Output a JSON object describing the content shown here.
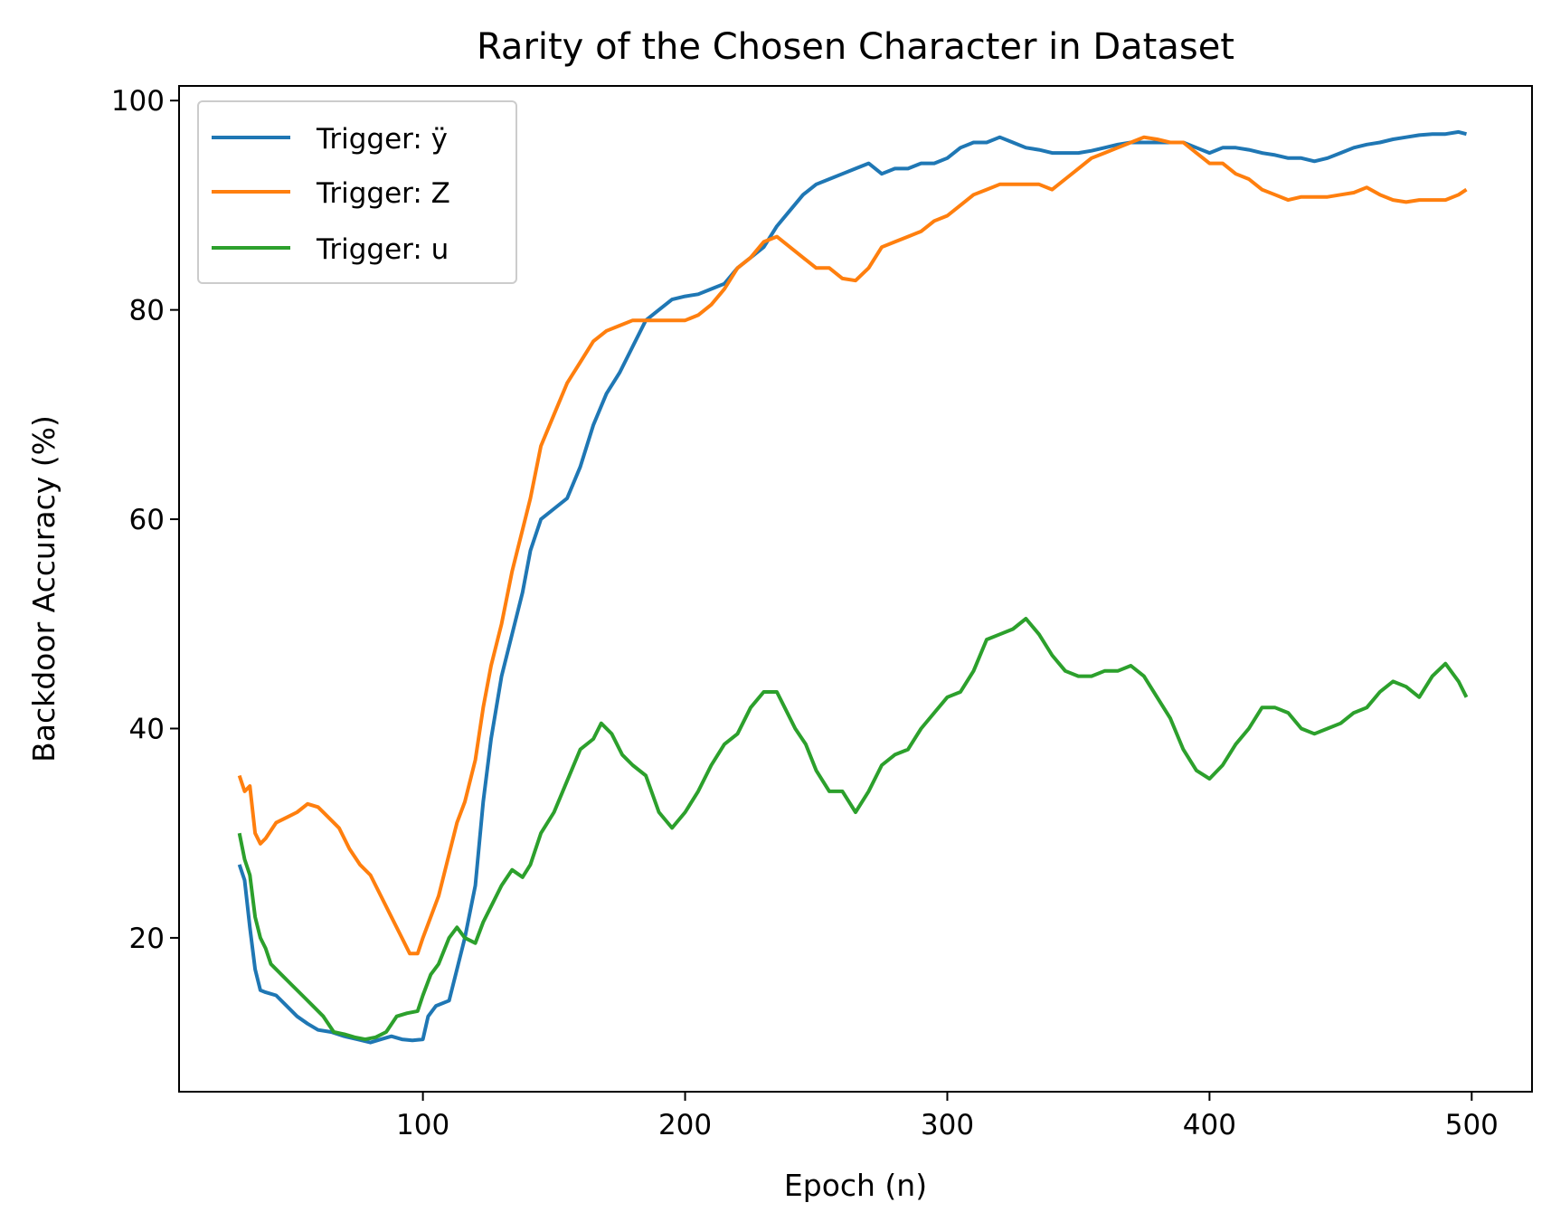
{
  "chart_data": {
    "type": "line",
    "title": "Rarity of the Chosen Character in Dataset",
    "xlabel": "Epoch (n)",
    "ylabel": "Backdoor Accuracy (%)",
    "xlim": [
      7,
      523
    ],
    "ylim": [
      5.3,
      101.4
    ],
    "xticks": [
      100,
      200,
      300,
      400,
      500
    ],
    "yticks": [
      20,
      40,
      60,
      80,
      100
    ],
    "grid": false,
    "legend_position": "top-left",
    "series": [
      {
        "name": "Trigger: ÿ",
        "color": "#1f77b4",
        "points": [
          [
            30,
            27
          ],
          [
            32,
            25.5
          ],
          [
            34,
            21
          ],
          [
            36,
            17
          ],
          [
            38,
            15
          ],
          [
            40,
            14.8
          ],
          [
            44,
            14.5
          ],
          [
            48,
            13.5
          ],
          [
            52,
            12.5
          ],
          [
            56,
            11.8
          ],
          [
            60,
            11.2
          ],
          [
            65,
            11
          ],
          [
            70,
            10.6
          ],
          [
            75,
            10.3
          ],
          [
            80,
            10
          ],
          [
            84,
            10.3
          ],
          [
            88,
            10.6
          ],
          [
            92,
            10.3
          ],
          [
            96,
            10.2
          ],
          [
            100,
            10.3
          ],
          [
            102,
            12.5
          ],
          [
            105,
            13.5
          ],
          [
            110,
            14
          ],
          [
            113,
            17
          ],
          [
            116,
            20
          ],
          [
            120,
            25
          ],
          [
            123,
            33
          ],
          [
            126,
            39
          ],
          [
            130,
            45
          ],
          [
            134,
            49
          ],
          [
            138,
            53
          ],
          [
            141,
            57
          ],
          [
            145,
            60
          ],
          [
            150,
            61
          ],
          [
            155,
            62
          ],
          [
            160,
            65
          ],
          [
            165,
            69
          ],
          [
            170,
            72
          ],
          [
            175,
            74
          ],
          [
            180,
            76.5
          ],
          [
            185,
            79
          ],
          [
            190,
            80
          ],
          [
            195,
            81
          ],
          [
            200,
            81.3
          ],
          [
            205,
            81.5
          ],
          [
            210,
            82
          ],
          [
            215,
            82.5
          ],
          [
            220,
            84
          ],
          [
            225,
            85
          ],
          [
            230,
            86
          ],
          [
            235,
            88
          ],
          [
            240,
            89.5
          ],
          [
            245,
            91
          ],
          [
            250,
            92
          ],
          [
            255,
            92.5
          ],
          [
            260,
            93
          ],
          [
            265,
            93.5
          ],
          [
            270,
            94
          ],
          [
            275,
            93
          ],
          [
            280,
            93.5
          ],
          [
            285,
            93.5
          ],
          [
            290,
            94
          ],
          [
            295,
            94
          ],
          [
            300,
            94.5
          ],
          [
            305,
            95.5
          ],
          [
            310,
            96
          ],
          [
            315,
            96
          ],
          [
            320,
            96.5
          ],
          [
            325,
            96
          ],
          [
            330,
            95.5
          ],
          [
            335,
            95.3
          ],
          [
            340,
            95
          ],
          [
            345,
            95
          ],
          [
            350,
            95
          ],
          [
            355,
            95.2
          ],
          [
            360,
            95.5
          ],
          [
            365,
            95.8
          ],
          [
            370,
            96
          ],
          [
            375,
            96
          ],
          [
            380,
            96
          ],
          [
            385,
            96
          ],
          [
            390,
            96
          ],
          [
            395,
            95.5
          ],
          [
            400,
            95
          ],
          [
            405,
            95.5
          ],
          [
            410,
            95.5
          ],
          [
            415,
            95.3
          ],
          [
            420,
            95
          ],
          [
            425,
            94.8
          ],
          [
            430,
            94.5
          ],
          [
            435,
            94.5
          ],
          [
            440,
            94.2
          ],
          [
            445,
            94.5
          ],
          [
            450,
            95
          ],
          [
            455,
            95.5
          ],
          [
            460,
            95.8
          ],
          [
            465,
            96
          ],
          [
            470,
            96.3
          ],
          [
            475,
            96.5
          ],
          [
            480,
            96.7
          ],
          [
            485,
            96.8
          ],
          [
            490,
            96.8
          ],
          [
            495,
            97
          ],
          [
            498,
            96.8
          ]
        ]
      },
      {
        "name": "Trigger: Z",
        "color": "#ff7f0e",
        "points": [
          [
            30,
            35.5
          ],
          [
            32,
            34
          ],
          [
            34,
            34.5
          ],
          [
            36,
            30
          ],
          [
            38,
            29
          ],
          [
            40,
            29.5
          ],
          [
            44,
            31
          ],
          [
            48,
            31.5
          ],
          [
            52,
            32
          ],
          [
            56,
            32.8
          ],
          [
            60,
            32.5
          ],
          [
            64,
            31.5
          ],
          [
            68,
            30.5
          ],
          [
            72,
            28.5
          ],
          [
            76,
            27
          ],
          [
            80,
            26
          ],
          [
            84,
            24
          ],
          [
            88,
            22
          ],
          [
            92,
            20
          ],
          [
            95,
            18.5
          ],
          [
            98,
            18.5
          ],
          [
            100,
            20
          ],
          [
            103,
            22
          ],
          [
            106,
            24
          ],
          [
            110,
            28
          ],
          [
            113,
            31
          ],
          [
            116,
            33
          ],
          [
            120,
            37
          ],
          [
            123,
            42
          ],
          [
            126,
            46
          ],
          [
            130,
            50
          ],
          [
            134,
            55
          ],
          [
            138,
            59
          ],
          [
            141,
            62
          ],
          [
            145,
            67
          ],
          [
            150,
            70
          ],
          [
            155,
            73
          ],
          [
            160,
            75
          ],
          [
            165,
            77
          ],
          [
            170,
            78
          ],
          [
            175,
            78.5
          ],
          [
            180,
            79
          ],
          [
            185,
            79
          ],
          [
            190,
            79
          ],
          [
            195,
            79
          ],
          [
            200,
            79
          ],
          [
            205,
            79.5
          ],
          [
            210,
            80.5
          ],
          [
            215,
            82
          ],
          [
            220,
            84
          ],
          [
            225,
            85
          ],
          [
            230,
            86.5
          ],
          [
            235,
            87
          ],
          [
            240,
            86
          ],
          [
            245,
            85
          ],
          [
            250,
            84
          ],
          [
            255,
            84
          ],
          [
            260,
            83
          ],
          [
            265,
            82.8
          ],
          [
            270,
            84
          ],
          [
            275,
            86
          ],
          [
            280,
            86.5
          ],
          [
            285,
            87
          ],
          [
            290,
            87.5
          ],
          [
            295,
            88.5
          ],
          [
            300,
            89
          ],
          [
            305,
            90
          ],
          [
            310,
            91
          ],
          [
            315,
            91.5
          ],
          [
            320,
            92
          ],
          [
            325,
            92
          ],
          [
            330,
            92
          ],
          [
            335,
            92
          ],
          [
            340,
            91.5
          ],
          [
            345,
            92.5
          ],
          [
            350,
            93.5
          ],
          [
            355,
            94.5
          ],
          [
            360,
            95
          ],
          [
            365,
            95.5
          ],
          [
            370,
            96
          ],
          [
            375,
            96.5
          ],
          [
            380,
            96.3
          ],
          [
            385,
            96
          ],
          [
            390,
            96
          ],
          [
            395,
            95
          ],
          [
            400,
            94
          ],
          [
            405,
            94
          ],
          [
            410,
            93
          ],
          [
            415,
            92.5
          ],
          [
            420,
            91.5
          ],
          [
            425,
            91
          ],
          [
            430,
            90.5
          ],
          [
            435,
            90.8
          ],
          [
            440,
            90.8
          ],
          [
            445,
            90.8
          ],
          [
            450,
            91
          ],
          [
            455,
            91.2
          ],
          [
            460,
            91.7
          ],
          [
            465,
            91
          ],
          [
            470,
            90.5
          ],
          [
            475,
            90.3
          ],
          [
            480,
            90.5
          ],
          [
            485,
            90.5
          ],
          [
            490,
            90.5
          ],
          [
            495,
            91
          ],
          [
            498,
            91.5
          ]
        ]
      },
      {
        "name": "Trigger: u",
        "color": "#2ca02c",
        "points": [
          [
            30,
            30
          ],
          [
            32,
            27.5
          ],
          [
            34,
            26
          ],
          [
            36,
            22
          ],
          [
            38,
            20
          ],
          [
            40,
            19
          ],
          [
            42,
            17.5
          ],
          [
            46,
            16.5
          ],
          [
            50,
            15.5
          ],
          [
            54,
            14.5
          ],
          [
            58,
            13.5
          ],
          [
            62,
            12.5
          ],
          [
            66,
            11
          ],
          [
            70,
            10.8
          ],
          [
            74,
            10.5
          ],
          [
            78,
            10.3
          ],
          [
            82,
            10.5
          ],
          [
            86,
            11
          ],
          [
            90,
            12.5
          ],
          [
            94,
            12.8
          ],
          [
            98,
            13
          ],
          [
            100,
            14.5
          ],
          [
            103,
            16.5
          ],
          [
            106,
            17.5
          ],
          [
            110,
            20
          ],
          [
            113,
            21
          ],
          [
            116,
            20
          ],
          [
            120,
            19.5
          ],
          [
            123,
            21.5
          ],
          [
            126,
            23
          ],
          [
            130,
            25
          ],
          [
            134,
            26.5
          ],
          [
            138,
            25.8
          ],
          [
            141,
            27
          ],
          [
            145,
            30
          ],
          [
            150,
            32
          ],
          [
            155,
            35
          ],
          [
            160,
            38
          ],
          [
            165,
            39
          ],
          [
            168,
            40.5
          ],
          [
            172,
            39.5
          ],
          [
            176,
            37.5
          ],
          [
            180,
            36.5
          ],
          [
            185,
            35.5
          ],
          [
            190,
            32
          ],
          [
            195,
            30.5
          ],
          [
            200,
            32
          ],
          [
            205,
            34
          ],
          [
            210,
            36.5
          ],
          [
            215,
            38.5
          ],
          [
            220,
            39.5
          ],
          [
            225,
            42
          ],
          [
            230,
            43.5
          ],
          [
            235,
            43.5
          ],
          [
            238,
            42
          ],
          [
            242,
            40
          ],
          [
            246,
            38.5
          ],
          [
            250,
            36
          ],
          [
            255,
            34
          ],
          [
            260,
            34
          ],
          [
            265,
            32
          ],
          [
            270,
            34
          ],
          [
            275,
            36.5
          ],
          [
            280,
            37.5
          ],
          [
            285,
            38
          ],
          [
            290,
            40
          ],
          [
            295,
            41.5
          ],
          [
            300,
            43
          ],
          [
            305,
            43.5
          ],
          [
            310,
            45.5
          ],
          [
            315,
            48.5
          ],
          [
            320,
            49
          ],
          [
            325,
            49.5
          ],
          [
            330,
            50.5
          ],
          [
            335,
            49
          ],
          [
            340,
            47
          ],
          [
            345,
            45.5
          ],
          [
            350,
            45
          ],
          [
            355,
            45
          ],
          [
            360,
            45.5
          ],
          [
            365,
            45.5
          ],
          [
            370,
            46
          ],
          [
            375,
            45
          ],
          [
            380,
            43
          ],
          [
            385,
            41
          ],
          [
            390,
            38
          ],
          [
            395,
            36
          ],
          [
            400,
            35.2
          ],
          [
            405,
            36.5
          ],
          [
            410,
            38.5
          ],
          [
            415,
            40
          ],
          [
            420,
            42
          ],
          [
            425,
            42
          ],
          [
            430,
            41.5
          ],
          [
            435,
            40
          ],
          [
            440,
            39.5
          ],
          [
            445,
            40
          ],
          [
            450,
            40.5
          ],
          [
            455,
            41.5
          ],
          [
            460,
            42
          ],
          [
            465,
            43.5
          ],
          [
            470,
            44.5
          ],
          [
            475,
            44
          ],
          [
            480,
            43
          ],
          [
            485,
            45
          ],
          [
            490,
            46.2
          ],
          [
            495,
            44.5
          ],
          [
            498,
            43
          ]
        ]
      }
    ]
  }
}
